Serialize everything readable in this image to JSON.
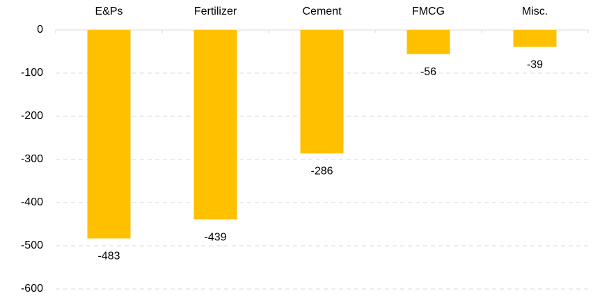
{
  "chart_data": {
    "type": "bar",
    "categories": [
      "E&Ps",
      "Fertilizer",
      "Cement",
      "FMCG",
      "Misc."
    ],
    "values": [
      -483,
      -439,
      -286,
      -56,
      -39
    ],
    "color": "#ffc000",
    "ylim": [
      -600,
      0
    ],
    "yticks": [
      0,
      -100,
      -200,
      -300,
      -400,
      -500,
      -600
    ],
    "grid": true
  }
}
